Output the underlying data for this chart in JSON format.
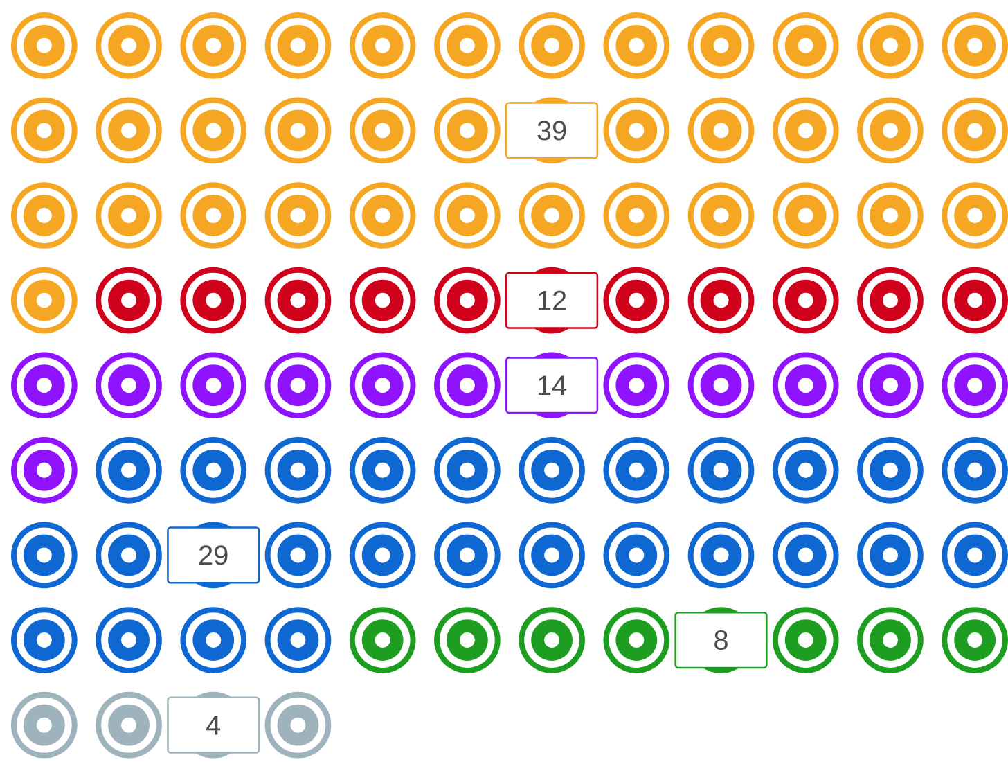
{
  "chart_data": {
    "type": "other",
    "categories": [
      null,
      null,
      null,
      null,
      null,
      null
    ],
    "values": [
      39,
      12,
      14,
      29,
      8,
      4
    ],
    "colors": [
      "#f5a623",
      "#d0021b",
      "#9013fe",
      "#0f68d2",
      "#1e9e20",
      "#9fb3bc"
    ],
    "data_labels": true
  }
}
